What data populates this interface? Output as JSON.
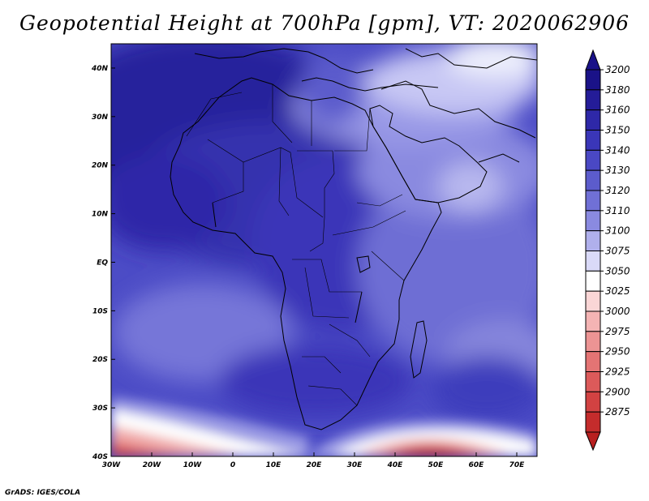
{
  "title": "Geopotential Height at 700hPa [gpm], VT: 2020062906",
  "credit": "GrADS: IGES/COLA",
  "map": {
    "lon_range": [
      -30,
      75
    ],
    "lat_range": [
      -40,
      45
    ],
    "x_ticks": [
      {
        "value": -30,
        "label": "30W"
      },
      {
        "value": -20,
        "label": "20W"
      },
      {
        "value": -10,
        "label": "10W"
      },
      {
        "value": 0,
        "label": "0"
      },
      {
        "value": 10,
        "label": "10E"
      },
      {
        "value": 20,
        "label": "20E"
      },
      {
        "value": 30,
        "label": "30E"
      },
      {
        "value": 40,
        "label": "40E"
      },
      {
        "value": 50,
        "label": "50E"
      },
      {
        "value": 60,
        "label": "60E"
      },
      {
        "value": 70,
        "label": "70E"
      }
    ],
    "y_ticks": [
      {
        "value": 40,
        "label": "40N"
      },
      {
        "value": 30,
        "label": "30N"
      },
      {
        "value": 20,
        "label": "20N"
      },
      {
        "value": 10,
        "label": "10N"
      },
      {
        "value": 0,
        "label": "EQ"
      },
      {
        "value": -10,
        "label": "10S"
      },
      {
        "value": -20,
        "label": "20S"
      },
      {
        "value": -30,
        "label": "30S"
      },
      {
        "value": -40,
        "label": "40S"
      }
    ]
  },
  "colorbar": {
    "levels": [
      {
        "value": "3200",
        "color": "#1a1288"
      },
      {
        "value": "3180",
        "color": "#241c98"
      },
      {
        "value": "3160",
        "color": "#2e28a8"
      },
      {
        "value": "3150",
        "color": "#3a36b8"
      },
      {
        "value": "3140",
        "color": "#4a48c4"
      },
      {
        "value": "3130",
        "color": "#5c5ccc"
      },
      {
        "value": "3120",
        "color": "#7070d6"
      },
      {
        "value": "3110",
        "color": "#8a8ae0"
      },
      {
        "value": "3100",
        "color": "#b0b0ec"
      },
      {
        "value": "3075",
        "color": "#dadaf8"
      },
      {
        "value": "3050",
        "color": "#ffffff"
      },
      {
        "value": "3025",
        "color": "#fad6d6"
      },
      {
        "value": "3000",
        "color": "#f4b4b4"
      },
      {
        "value": "2975",
        "color": "#ec9494"
      },
      {
        "value": "2950",
        "color": "#e47474"
      },
      {
        "value": "2925",
        "color": "#dc5a5a"
      },
      {
        "value": "2900",
        "color": "#d24242"
      },
      {
        "value": "2875",
        "color": "#c42c2c"
      }
    ],
    "top_cap_color": "#1a1288",
    "bottom_cap_color": "#b82020"
  }
}
